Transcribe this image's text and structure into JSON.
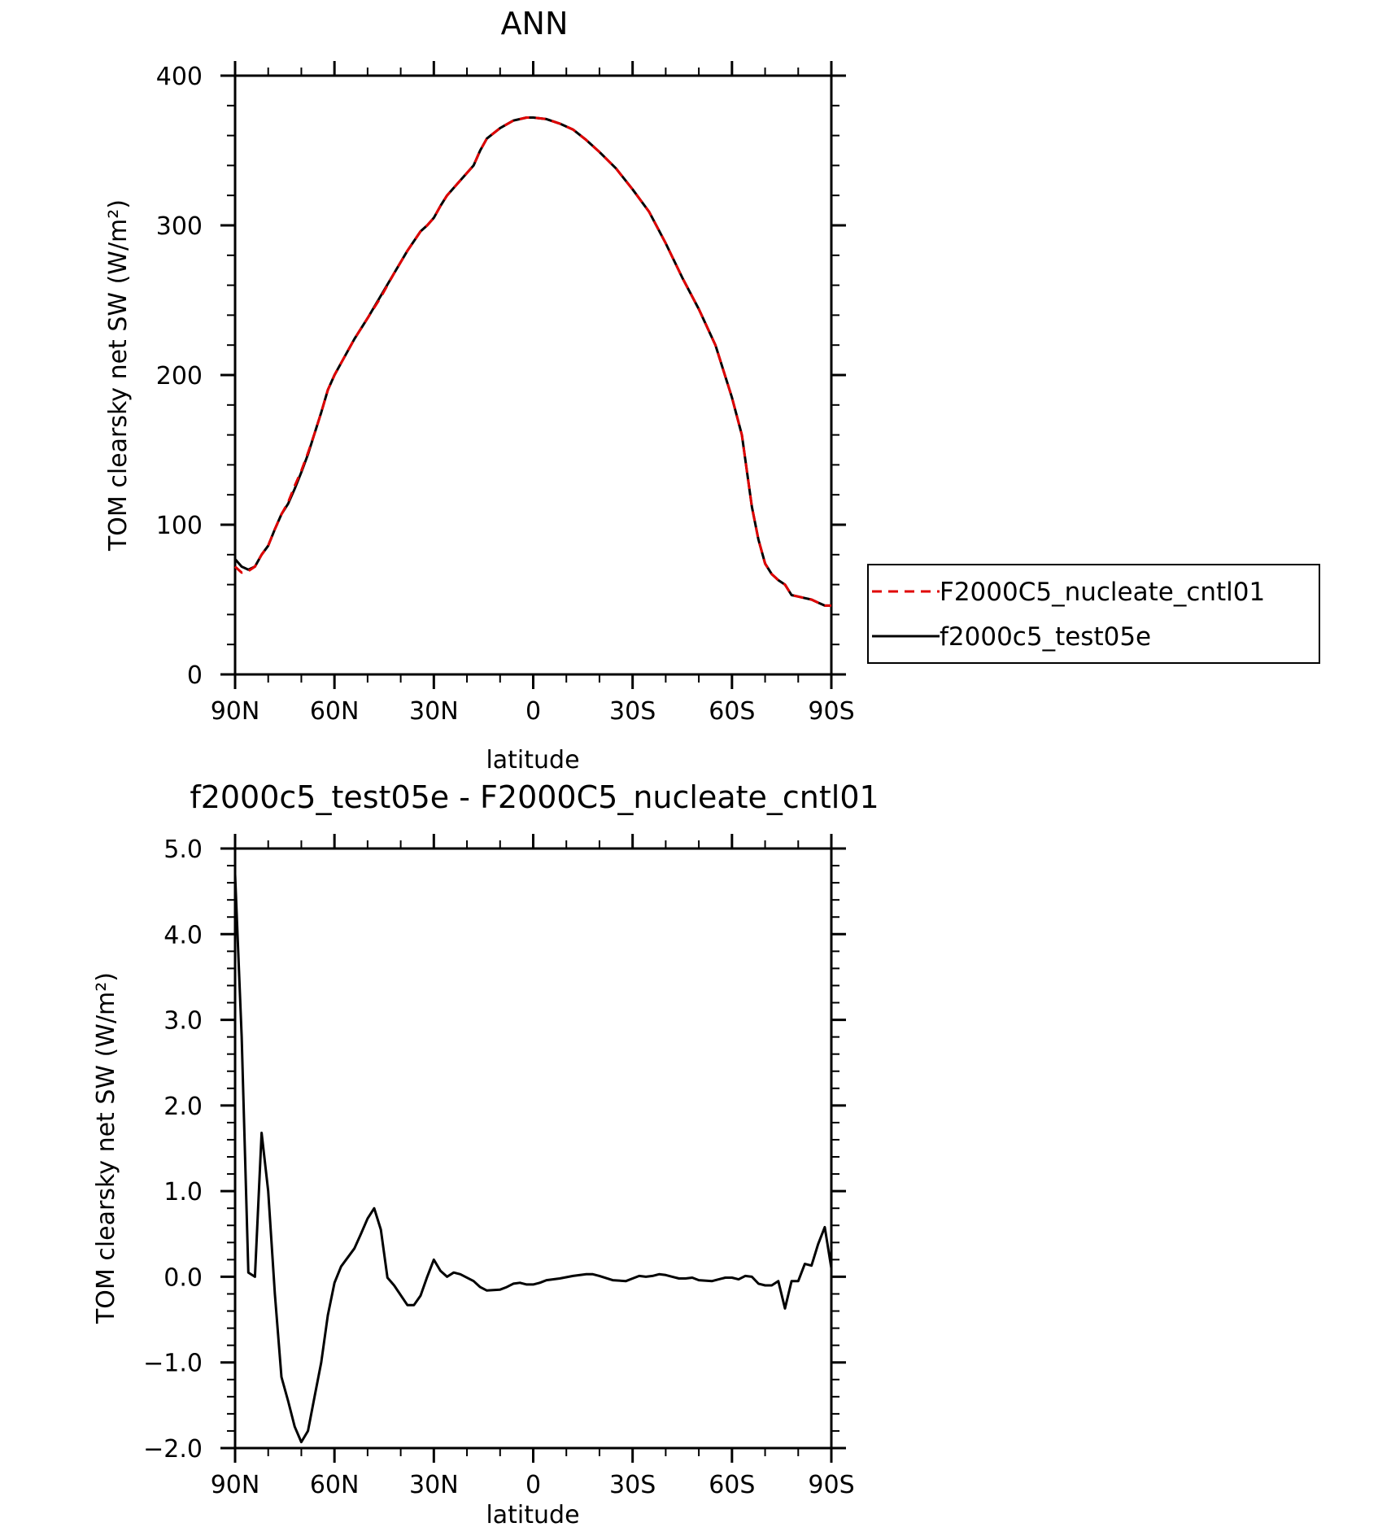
{
  "chart_data": [
    {
      "type": "line",
      "title": "ANN",
      "xlabel": "latitude",
      "ylabel": "TOM clearsky net SW (W/m²)",
      "xlim": [
        90,
        -90
      ],
      "ylim": [
        0,
        400
      ],
      "xticks": [
        {
          "value": 90,
          "label": "90N"
        },
        {
          "value": 60,
          "label": "60N"
        },
        {
          "value": 30,
          "label": "30N"
        },
        {
          "value": 0,
          "label": "0"
        },
        {
          "value": -30,
          "label": "30S"
        },
        {
          "value": -60,
          "label": "60S"
        },
        {
          "value": -90,
          "label": "90S"
        }
      ],
      "yticks": [
        {
          "value": 0,
          "label": "0"
        },
        {
          "value": 100,
          "label": "100"
        },
        {
          "value": 200,
          "label": "200"
        },
        {
          "value": 300,
          "label": "300"
        },
        {
          "value": 400,
          "label": "400"
        }
      ],
      "grid": false,
      "legend": "right",
      "x": [
        90,
        88,
        86,
        84,
        82,
        80,
        78,
        76,
        74,
        72,
        70,
        68,
        66,
        64,
        62,
        60,
        58,
        54,
        50,
        46,
        42,
        38,
        34,
        32,
        30,
        28,
        26,
        22,
        18,
        16,
        14,
        10,
        6,
        2,
        0,
        -4,
        -8,
        -12,
        -16,
        -20,
        -25,
        -30,
        -35,
        -40,
        -45,
        -50,
        -55,
        -60,
        -63,
        -66,
        -68,
        -70,
        -72,
        -74,
        -76,
        -78,
        -80,
        -82,
        -84,
        -86,
        -88,
        -90
      ],
      "series": [
        {
          "name": "F2000C5_nucleate_cntl01",
          "color": "#e00000",
          "dash": true,
          "values": [
            72,
            68,
            69,
            72,
            80,
            86,
            97,
            107,
            115,
            126,
            136,
            148,
            161,
            175,
            190,
            200,
            208,
            224,
            238,
            252,
            268,
            283,
            296,
            300,
            305,
            313,
            320,
            330,
            340,
            350,
            358,
            365,
            370,
            372,
            372,
            371,
            368,
            364,
            357,
            349,
            338,
            324,
            309,
            288,
            265,
            244,
            220,
            185,
            160,
            112,
            90,
            74,
            67,
            63,
            60,
            53,
            52,
            51,
            50,
            48,
            46,
            46
          ]
        },
        {
          "name": "f2000c5_test05e",
          "color": "#000000",
          "dash": false,
          "values": [
            77,
            72,
            70,
            72,
            80,
            86,
            97,
            107,
            114,
            124,
            135,
            147,
            161,
            175,
            190,
            200,
            208,
            224,
            238,
            253,
            268,
            283,
            296,
            300,
            305,
            313,
            320,
            330,
            340,
            350,
            358,
            365,
            370,
            372,
            372,
            371,
            368,
            364,
            357,
            349,
            338,
            324,
            309,
            288,
            265,
            244,
            220,
            185,
            160,
            112,
            90,
            74,
            67,
            63,
            60,
            53,
            52,
            51,
            50,
            48,
            46,
            46
          ]
        }
      ]
    },
    {
      "type": "line",
      "title": "f2000c5_test05e - F2000C5_nucleate_cntl01",
      "xlabel": "latitude",
      "ylabel": "TOM clearsky net SW (W/m²)",
      "xlim": [
        90,
        -90
      ],
      "ylim": [
        -2.0,
        5.0
      ],
      "xticks": [
        {
          "value": 90,
          "label": "90N"
        },
        {
          "value": 60,
          "label": "60N"
        },
        {
          "value": 30,
          "label": "30N"
        },
        {
          "value": 0,
          "label": "0"
        },
        {
          "value": -30,
          "label": "30S"
        },
        {
          "value": -60,
          "label": "60S"
        },
        {
          "value": -90,
          "label": "90S"
        }
      ],
      "yticks": [
        {
          "value": -2.0,
          "label": "−2.0"
        },
        {
          "value": -1.0,
          "label": "−1.0"
        },
        {
          "value": 0.0,
          "label": "0.0"
        },
        {
          "value": 1.0,
          "label": "1.0"
        },
        {
          "value": 2.0,
          "label": "2.0"
        },
        {
          "value": 3.0,
          "label": "3.0"
        },
        {
          "value": 4.0,
          "label": "4.0"
        },
        {
          "value": 5.0,
          "label": "5.0"
        }
      ],
      "grid": false,
      "x": [
        90,
        88,
        86,
        84,
        82,
        80,
        78,
        76,
        74,
        72,
        70,
        68,
        66,
        64,
        62,
        60,
        58,
        54,
        52,
        50,
        48,
        46,
        44,
        42,
        38,
        36,
        34,
        32,
        30,
        28,
        26,
        24,
        22,
        18,
        16,
        14,
        10,
        8,
        6,
        4,
        2,
        0,
        -2,
        -4,
        -8,
        -12,
        -16,
        -18,
        -20,
        -24,
        -28,
        -30,
        -32,
        -34,
        -36,
        -38,
        -40,
        -42,
        -44,
        -46,
        -48,
        -50,
        -54,
        -56,
        -58,
        -60,
        -62,
        -64,
        -66,
        -68,
        -70,
        -72,
        -74,
        -76,
        -78,
        -80,
        -82,
        -84,
        -86,
        -88,
        -90
      ],
      "series": [
        {
          "name": "f2000c5_test05e",
          "color": "#000000",
          "dash": false,
          "values": [
            4.7,
            2.8,
            0.05,
            0.0,
            1.68,
            1.0,
            -0.2,
            -1.17,
            -1.45,
            -1.75,
            -1.93,
            -1.8,
            -1.4,
            -1.0,
            -0.45,
            -0.07,
            0.12,
            0.33,
            0.5,
            0.68,
            0.8,
            0.55,
            -0.01,
            -0.1,
            -0.33,
            -0.33,
            -0.22,
            0.0,
            0.2,
            0.07,
            0.0,
            0.05,
            0.03,
            -0.05,
            -0.12,
            -0.16,
            -0.15,
            -0.12,
            -0.08,
            -0.07,
            -0.09,
            -0.09,
            -0.07,
            -0.04,
            -0.02,
            0.01,
            0.03,
            0.03,
            0.01,
            -0.04,
            -0.05,
            -0.02,
            0.01,
            0.0,
            0.01,
            0.03,
            0.02,
            0.0,
            -0.02,
            -0.02,
            -0.01,
            -0.04,
            -0.05,
            -0.03,
            -0.01,
            -0.01,
            -0.03,
            0.01,
            0.0,
            -0.08,
            -0.1,
            -0.1,
            -0.05,
            -0.37,
            -0.05,
            -0.05,
            0.15,
            0.13,
            0.38,
            0.58,
            0.1
          ]
        }
      ]
    }
  ]
}
